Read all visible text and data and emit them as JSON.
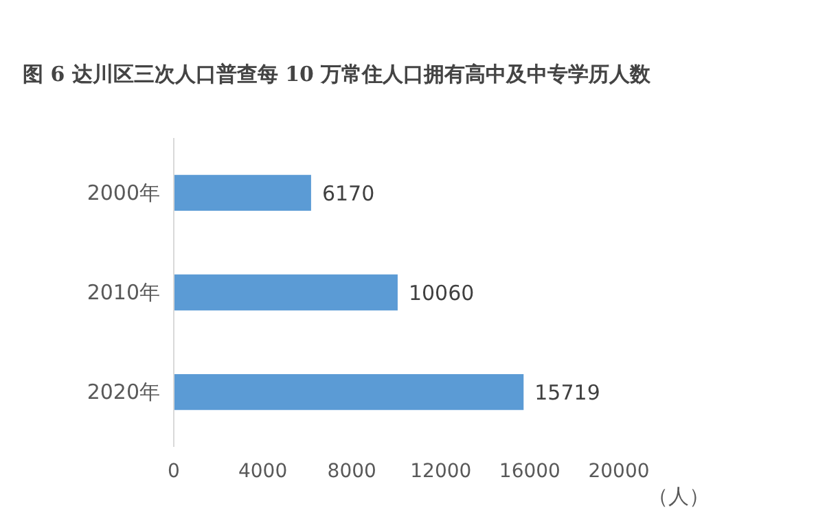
{
  "chart_data": {
    "type": "bar",
    "orientation": "horizontal",
    "title": "图 6   达川区三次人口普查每 10 万常住人口拥有高中及中专学历人数",
    "categories": [
      "2000年",
      "2010年",
      "2020年"
    ],
    "values": [
      6170,
      10060,
      15719
    ],
    "color": "#5b9bd5",
    "xlabel": "（人）",
    "xlim": [
      0,
      20000
    ],
    "xticks": [
      0,
      4000,
      8000,
      12000,
      16000,
      20000
    ],
    "data_labels": true,
    "grid": false
  }
}
